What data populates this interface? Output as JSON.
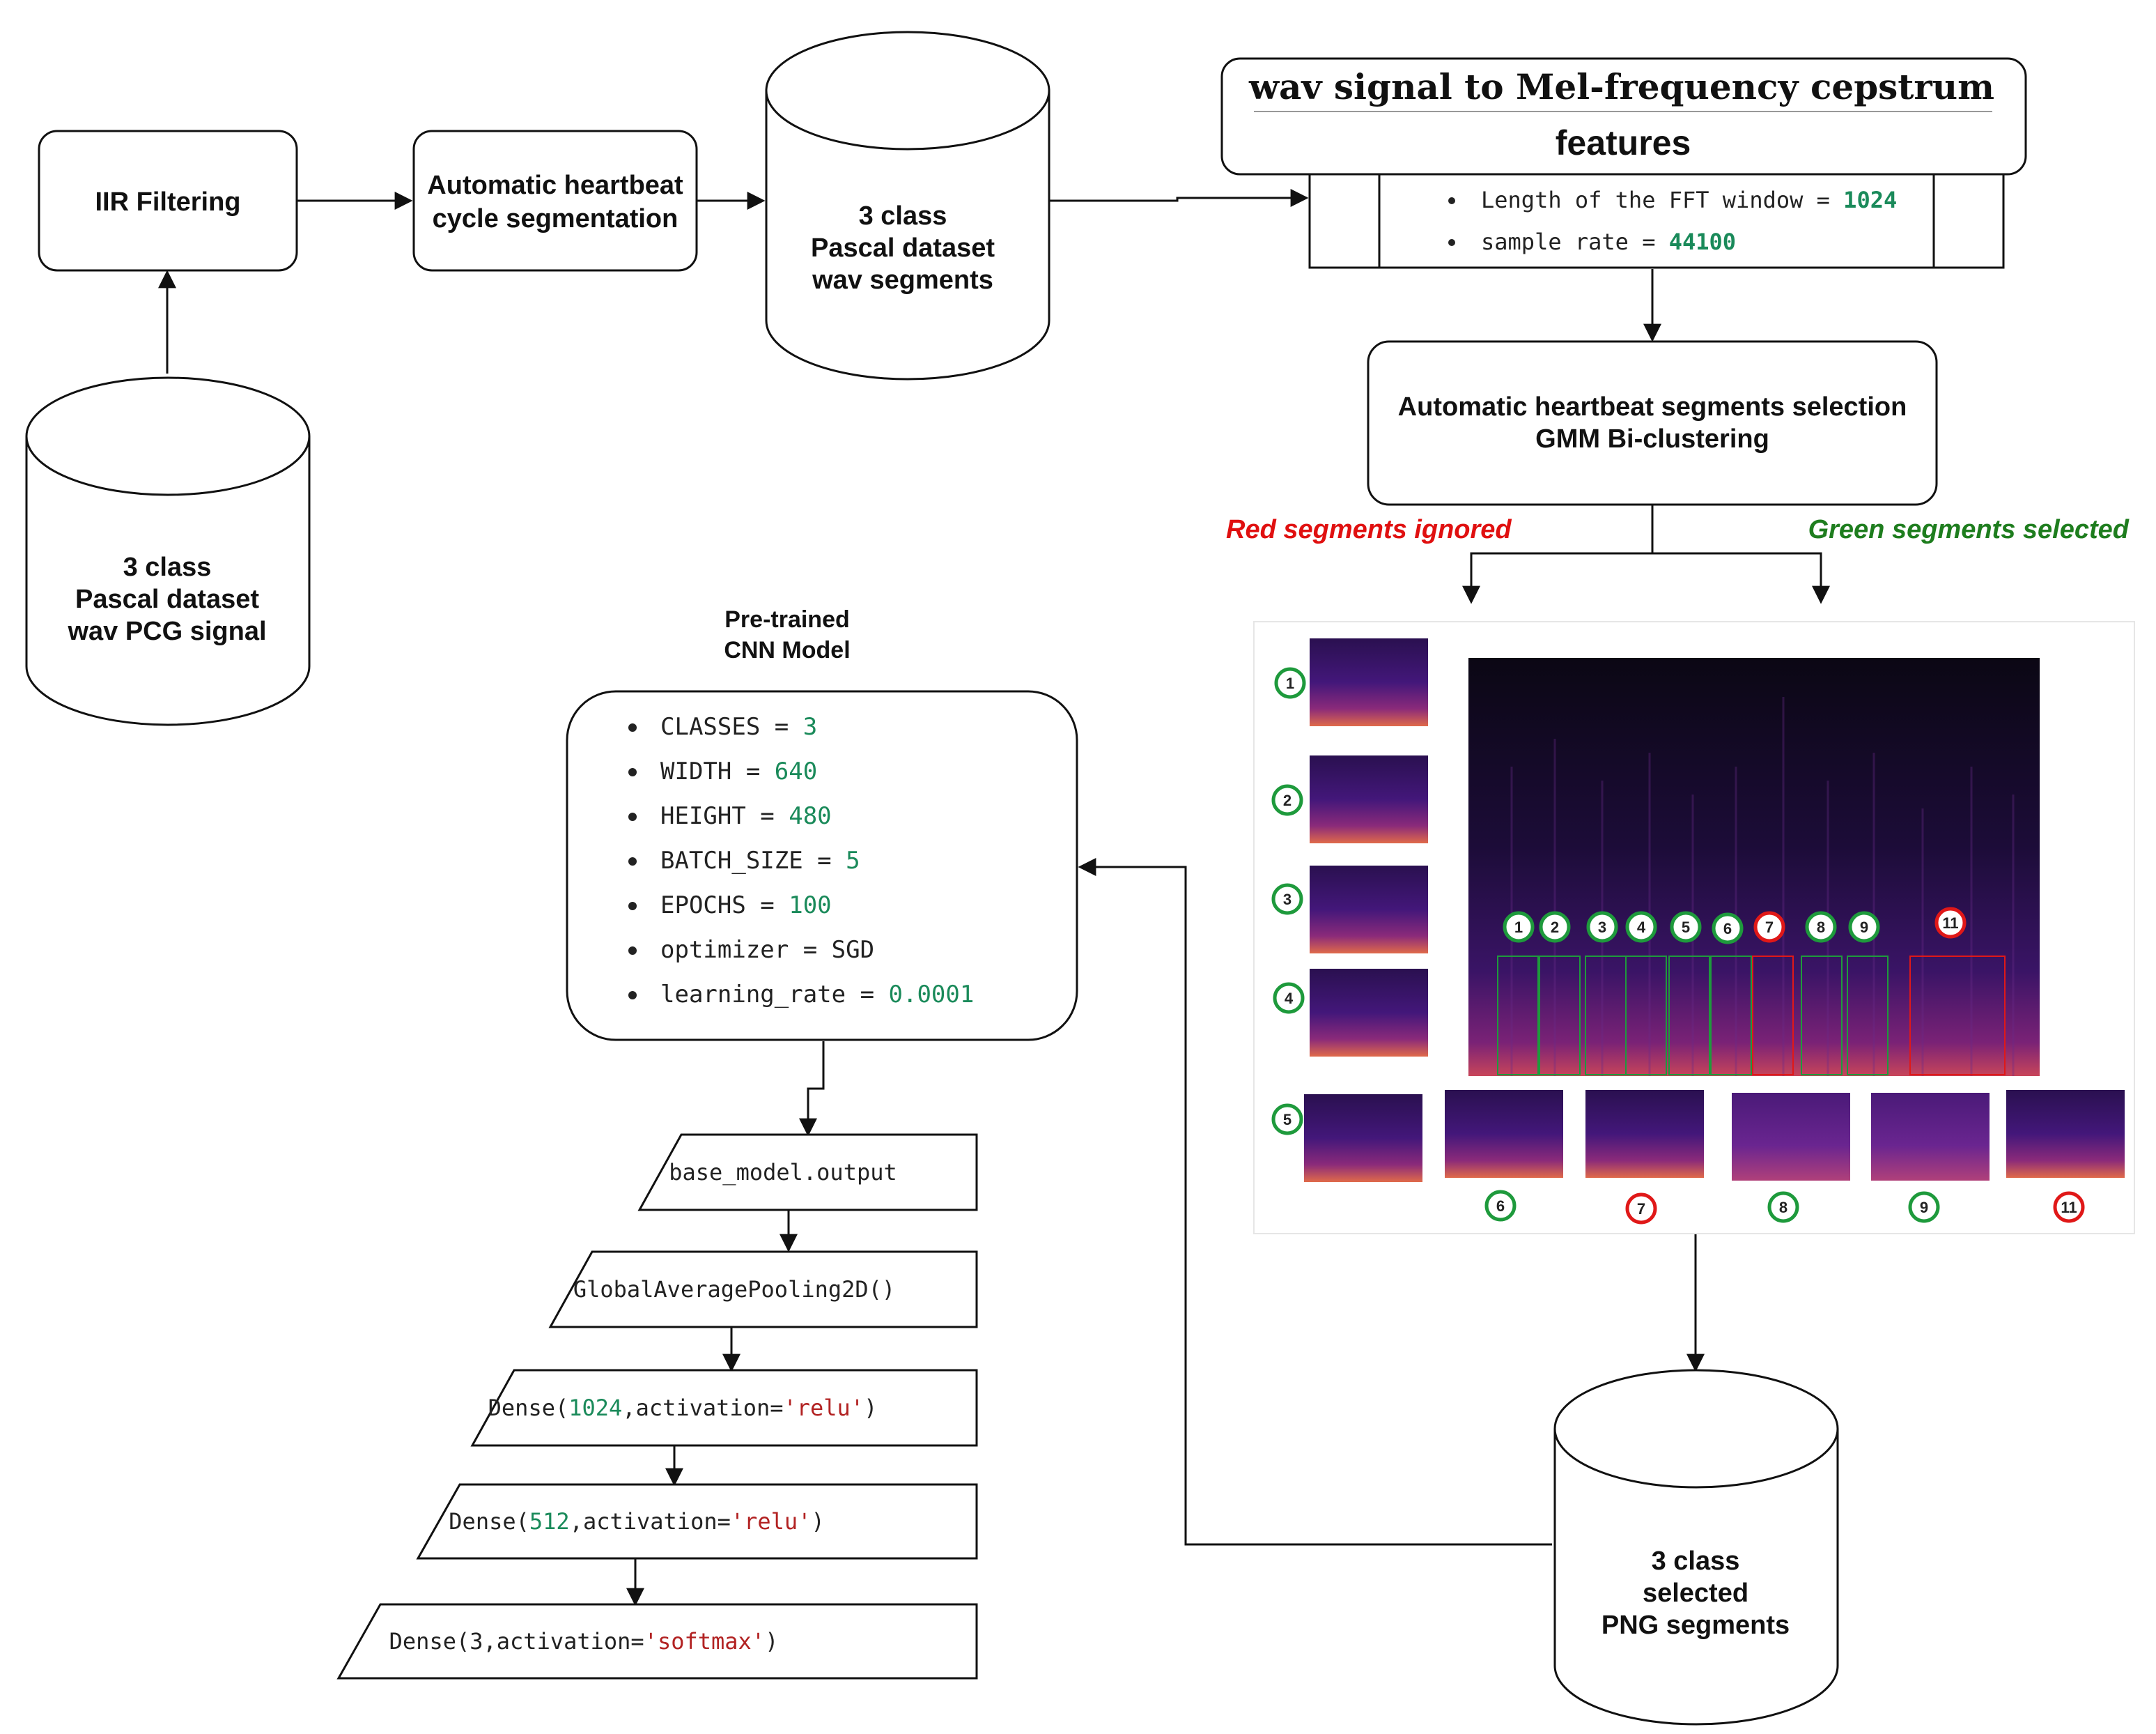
{
  "nodes": {
    "iir": {
      "label": "IIR Filtering"
    },
    "cycle_seg": {
      "lines": [
        "Automatic heartbeat",
        "cycle segmentation"
      ]
    },
    "wav_segments_db": {
      "lines": [
        "3 class",
        "Pascal dataset",
        "wav segments"
      ]
    },
    "pcg_db": {
      "lines": [
        "3 class",
        "Pascal dataset",
        "wav PCG signal"
      ]
    },
    "mfcc": {
      "title_line1": "wav signal to Mel-frequency cepstrum",
      "title_line2": "features",
      "params": [
        {
          "text": "Length of the FFT window = ",
          "value": "1024"
        },
        {
          "text": "sample rate = ",
          "value": "44100"
        }
      ]
    },
    "selection": {
      "lines": [
        "Automatic heartbeat segments selection",
        "GMM Bi-clustering"
      ]
    },
    "png_db": {
      "lines": [
        "3 class",
        "selected",
        "PNG segments"
      ]
    },
    "cnn": {
      "title_lines": [
        "Pre-trained",
        "CNN Model"
      ],
      "params": [
        {
          "key": "CLASSES = ",
          "value": "3",
          "value_color": "#1a8a5a"
        },
        {
          "key": "WIDTH = ",
          "value": "640",
          "value_color": "#1a8a5a"
        },
        {
          "key": "HEIGHT = ",
          "value": "480",
          "value_color": "#1a8a5a"
        },
        {
          "key": "BATCH_SIZE = ",
          "value": "5",
          "value_color": "#1a8a5a"
        },
        {
          "key": "EPOCHS = ",
          "value": "100",
          "value_color": "#1a8a5a"
        },
        {
          "key": "optimizer = ",
          "value": "SGD",
          "value_color": "#222222"
        },
        {
          "key": "learning_rate = ",
          "value": "0.0001",
          "value_color": "#1a8a5a"
        }
      ]
    },
    "layers": [
      {
        "parts": [
          {
            "t": "base_model.output",
            "c": "#222222"
          }
        ]
      },
      {
        "parts": [
          {
            "t": "GlobalAveragePooling2D()",
            "c": "#222222"
          }
        ]
      },
      {
        "parts": [
          {
            "t": "Dense(",
            "c": "#222222"
          },
          {
            "t": "1024",
            "c": "#1a8a5a"
          },
          {
            "t": ",activation=",
            "c": "#222222"
          },
          {
            "t": "'relu'",
            "c": "#b22222"
          },
          {
            "t": ")",
            "c": "#222222"
          }
        ]
      },
      {
        "parts": [
          {
            "t": "Dense(",
            "c": "#222222"
          },
          {
            "t": "512",
            "c": "#1a8a5a"
          },
          {
            "t": ",activation=",
            "c": "#222222"
          },
          {
            "t": "'relu'",
            "c": "#b22222"
          },
          {
            "t": ")",
            "c": "#222222"
          }
        ]
      },
      {
        "parts": [
          {
            "t": "Dense(3,activation=",
            "c": "#222222"
          },
          {
            "t": "'softmax'",
            "c": "#b22222"
          },
          {
            "t": ")",
            "c": "#222222"
          }
        ]
      }
    ]
  },
  "labels": {
    "red": "Red segments ignored",
    "green": "Green segments selected"
  },
  "spectrogram": {
    "markers": [
      {
        "n": "1",
        "status": "selected"
      },
      {
        "n": "2",
        "status": "selected"
      },
      {
        "n": "3",
        "status": "selected"
      },
      {
        "n": "4",
        "status": "selected"
      },
      {
        "n": "5",
        "status": "selected"
      },
      {
        "n": "6",
        "status": "selected"
      },
      {
        "n": "7",
        "status": "ignored"
      },
      {
        "n": "8",
        "status": "selected"
      },
      {
        "n": "9",
        "status": "selected"
      },
      {
        "n": "11",
        "status": "ignored"
      }
    ]
  },
  "colors": {
    "selected": "#1e9a3c",
    "ignored": "#e01818",
    "red_label": "#e01010",
    "green_label": "#1e7d1e"
  }
}
